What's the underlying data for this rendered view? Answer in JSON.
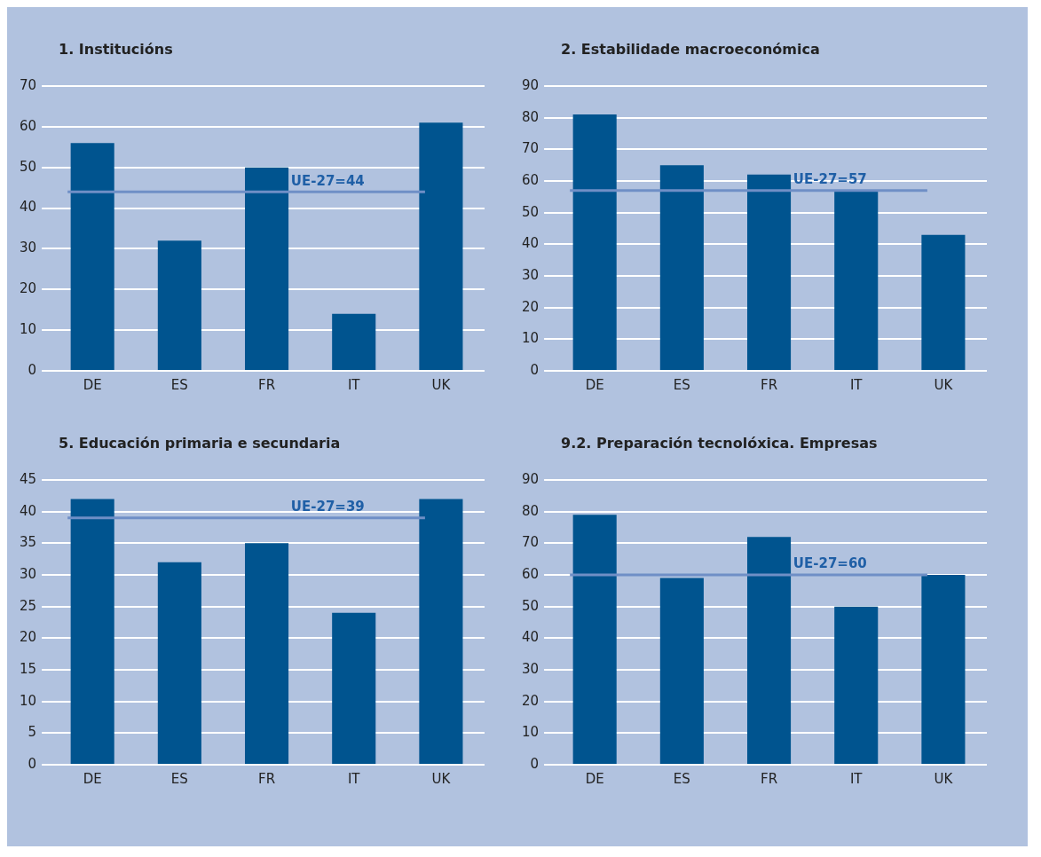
{
  "chart_data": [
    {
      "type": "bar",
      "title": "1. Institucións",
      "categories": [
        "DE",
        "ES",
        "FR",
        "IT",
        "UK"
      ],
      "values": [
        56,
        32,
        50,
        14,
        61
      ],
      "color": "#00548f",
      "ylim": [
        0,
        70
      ],
      "yticks": [
        0,
        10,
        20,
        30,
        40,
        50,
        60,
        70
      ],
      "grid": "y",
      "legend": false,
      "ref_lines": [
        {
          "axis": "y",
          "value": 44,
          "label": "UE-27=44",
          "color": "#6f8fc6"
        }
      ]
    },
    {
      "type": "bar",
      "title": "2. Estabilidade macroeconómica",
      "categories": [
        "DE",
        "ES",
        "FR",
        "IT",
        "UK"
      ],
      "values": [
        81,
        65,
        62,
        57,
        43
      ],
      "color": "#00548f",
      "ylim": [
        0,
        90
      ],
      "yticks": [
        0,
        10,
        20,
        30,
        40,
        50,
        60,
        70,
        80,
        90
      ],
      "grid": "y",
      "legend": false,
      "ref_lines": [
        {
          "axis": "y",
          "value": 57,
          "label": "UE-27=57",
          "color": "#6f8fc6"
        }
      ]
    },
    {
      "type": "bar",
      "title": "5. Educación primaria e secundaria",
      "categories": [
        "DE",
        "ES",
        "FR",
        "IT",
        "UK"
      ],
      "values": [
        42,
        32,
        35,
        24,
        42
      ],
      "color": "#00548f",
      "ylim": [
        0,
        45
      ],
      "yticks": [
        0,
        5,
        10,
        15,
        20,
        25,
        30,
        35,
        40,
        45
      ],
      "grid": "y",
      "legend": false,
      "ref_lines": [
        {
          "axis": "y",
          "value": 39,
          "label": "UE-27=39",
          "color": "#6f8fc6"
        }
      ]
    },
    {
      "type": "bar",
      "title": "9.2. Preparación tecnolóxica. Empresas",
      "categories": [
        "DE",
        "ES",
        "FR",
        "IT",
        "UK"
      ],
      "values": [
        79,
        59,
        72,
        50,
        60
      ],
      "color": "#00548f",
      "ylim": [
        0,
        90
      ],
      "yticks": [
        0,
        10,
        20,
        30,
        40,
        50,
        60,
        70,
        80,
        90
      ],
      "grid": "y",
      "legend": false,
      "ref_lines": [
        {
          "axis": "y",
          "value": 60,
          "label": "UE-27=60",
          "color": "#6f8fc6"
        }
      ]
    }
  ]
}
